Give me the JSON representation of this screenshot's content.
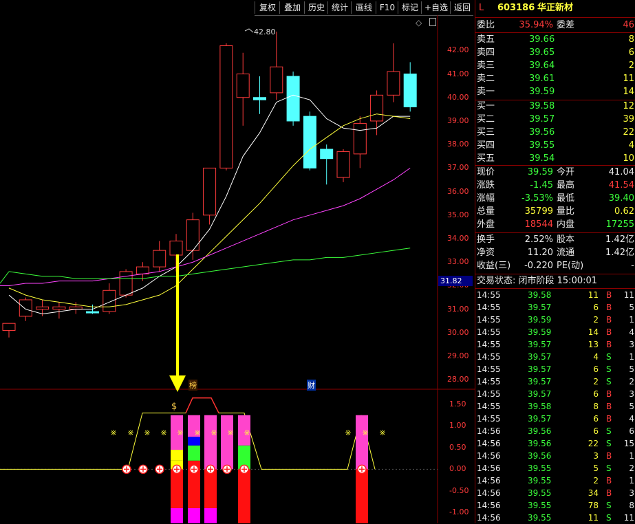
{
  "toolbar": {
    "buttons": [
      "复权",
      "叠加",
      "历史",
      "统计",
      "画线",
      "F10",
      "标记",
      "+自选",
      "返回"
    ]
  },
  "header": {
    "flag": "L",
    "code": "603186",
    "name": "华正新材"
  },
  "colors": {
    "up": "#ff3b3b",
    "down": "#54ffff",
    "ma5": "#ffffff",
    "ma10": "#ffff3c",
    "ma20": "#ff44ff",
    "ma60": "#3cff3c",
    "grid": "#8b0000",
    "flat": "#e8e8e8"
  },
  "price_axis": [
    "42.00",
    "41.00",
    "40.00",
    "39.00",
    "38.00",
    "37.00",
    "36.00",
    "35.00",
    "34.00",
    "33.00",
    "32.00",
    "31.00",
    "30.00",
    "29.00",
    "28.00"
  ],
  "current_price_marker": "31.82",
  "high_annotation": "42.80",
  "event_markers": {
    "bang": "榜",
    "cai": "财"
  },
  "indicator_axis": [
    "1.50",
    "1.00",
    "0.50",
    "0.00",
    "-0.50",
    "-1.00"
  ],
  "order_book": {
    "weibi_label": "委比",
    "weibi": "35.94%",
    "weicha_label": "委差",
    "weicha": "46",
    "asks": [
      {
        "label": "卖五",
        "price": "39.66",
        "vol": "8"
      },
      {
        "label": "卖四",
        "price": "39.65",
        "vol": "6"
      },
      {
        "label": "卖三",
        "price": "39.64",
        "vol": "2"
      },
      {
        "label": "卖二",
        "price": "39.61",
        "vol": "11"
      },
      {
        "label": "卖一",
        "price": "39.59",
        "vol": "14"
      }
    ],
    "bids": [
      {
        "label": "买一",
        "price": "39.58",
        "vol": "12"
      },
      {
        "label": "买二",
        "price": "39.57",
        "vol": "39"
      },
      {
        "label": "买三",
        "price": "39.56",
        "vol": "22"
      },
      {
        "label": "买四",
        "price": "39.55",
        "vol": "4"
      },
      {
        "label": "买五",
        "price": "39.54",
        "vol": "10"
      }
    ]
  },
  "quote": {
    "rows": [
      {
        "l1": "现价",
        "v1": "39.59",
        "c1": "g",
        "l2": "今开",
        "v2": "41.04",
        "c2": "w"
      },
      {
        "l1": "涨跌",
        "v1": "-1.45",
        "c1": "g",
        "l2": "最高",
        "v2": "41.54",
        "c2": "r"
      },
      {
        "l1": "涨幅",
        "v1": "-3.53%",
        "c1": "g",
        "l2": "最低",
        "v2": "39.40",
        "c2": "g"
      },
      {
        "l1": "总量",
        "v1": "35799",
        "c1": "y",
        "l2": "量比",
        "v2": "0.62",
        "c2": "y"
      },
      {
        "l1": "外盘",
        "v1": "18544",
        "c1": "r",
        "l2": "内盘",
        "v2": "17255",
        "c2": "g"
      }
    ],
    "rows2": [
      {
        "l1": "换手",
        "v1": "2.52%",
        "c1": "w",
        "l2": "股本",
        "v2": "1.42亿",
        "c2": "w"
      },
      {
        "l1": "净资",
        "v1": "11.20",
        "c1": "w",
        "l2": "流通",
        "v2": "1.42亿",
        "c2": "w"
      },
      {
        "l1": "收益(三)",
        "v1": "-0.220",
        "c1": "w",
        "l2": "PE(动)",
        "v2": "-",
        "c2": "w"
      }
    ]
  },
  "trade_status": "交易状态: 闭市阶段 15:00:01",
  "ticks": [
    [
      "14:55",
      "39.58",
      "11",
      "B",
      "11"
    ],
    [
      "14:55",
      "39.57",
      "6",
      "B",
      "5"
    ],
    [
      "14:55",
      "39.59",
      "2",
      "B",
      "1"
    ],
    [
      "14:55",
      "39.59",
      "14",
      "B",
      "4"
    ],
    [
      "14:55",
      "39.57",
      "13",
      "B",
      "3"
    ],
    [
      "14:55",
      "39.57",
      "4",
      "S",
      "1"
    ],
    [
      "14:55",
      "39.57",
      "6",
      "S",
      "5"
    ],
    [
      "14:55",
      "39.57",
      "2",
      "S",
      "2"
    ],
    [
      "14:55",
      "39.57",
      "6",
      "B",
      "3"
    ],
    [
      "14:55",
      "39.58",
      "8",
      "B",
      "5"
    ],
    [
      "14:55",
      "39.57",
      "6",
      "B",
      "4"
    ],
    [
      "14:56",
      "39.56",
      "6",
      "S",
      "6"
    ],
    [
      "14:56",
      "39.56",
      "22",
      "S",
      "15"
    ],
    [
      "14:56",
      "39.56",
      "3",
      "B",
      "1"
    ],
    [
      "14:56",
      "39.55",
      "5",
      "S",
      "2"
    ],
    [
      "14:56",
      "39.55",
      "2",
      "B",
      "1"
    ],
    [
      "14:56",
      "39.55",
      "34",
      "B",
      "3"
    ],
    [
      "14:56",
      "39.55",
      "78",
      "S",
      "8"
    ],
    [
      "14:56",
      "39.55",
      "11",
      "S",
      "11"
    ]
  ],
  "chart_data": {
    "type": "candlestick",
    "candles": [
      {
        "o": 30.1,
        "h": 30.4,
        "l": 29.8,
        "c": 30.4
      },
      {
        "o": 30.7,
        "h": 31.5,
        "l": 30.5,
        "c": 31.4
      },
      {
        "o": 31.0,
        "h": 31.4,
        "l": 30.7,
        "c": 31.1
      },
      {
        "o": 31.0,
        "h": 31.3,
        "l": 30.6,
        "c": 31.1
      },
      {
        "o": 31.0,
        "h": 31.3,
        "l": 30.8,
        "c": 31.1
      },
      {
        "o": 30.9,
        "h": 31.2,
        "l": 30.8,
        "c": 30.85
      },
      {
        "o": 30.9,
        "h": 32.1,
        "l": 30.8,
        "c": 31.8
      },
      {
        "o": 31.6,
        "h": 32.7,
        "l": 31.5,
        "c": 32.6
      },
      {
        "o": 32.5,
        "h": 33.0,
        "l": 32.2,
        "c": 32.8
      },
      {
        "o": 32.8,
        "h": 33.9,
        "l": 32.6,
        "c": 33.5
      },
      {
        "o": 33.3,
        "h": 34.2,
        "l": 32.6,
        "c": 33.9
      },
      {
        "o": 33.5,
        "h": 35.1,
        "l": 33.1,
        "c": 34.8
      },
      {
        "o": 35.0,
        "h": 37.0,
        "l": 34.6,
        "c": 37.0
      },
      {
        "o": 37.0,
        "h": 42.3,
        "l": 36.9,
        "c": 42.2
      },
      {
        "o": 40.0,
        "h": 41.9,
        "l": 38.8,
        "c": 41.0
      },
      {
        "o": 40.0,
        "h": 40.9,
        "l": 39.3,
        "c": 39.9
      },
      {
        "o": 40.2,
        "h": 42.8,
        "l": 39.9,
        "c": 41.3
      },
      {
        "o": 40.9,
        "h": 41.1,
        "l": 38.8,
        "c": 39.0
      },
      {
        "o": 39.2,
        "h": 39.4,
        "l": 36.9,
        "c": 37.0
      },
      {
        "o": 37.8,
        "h": 38.0,
        "l": 36.3,
        "c": 37.4
      },
      {
        "o": 36.6,
        "h": 37.8,
        "l": 36.4,
        "c": 37.7
      },
      {
        "o": 37.6,
        "h": 39.2,
        "l": 37.0,
        "c": 38.9
      },
      {
        "o": 39.0,
        "h": 40.3,
        "l": 38.4,
        "c": 40.1
      },
      {
        "o": 40.1,
        "h": 42.3,
        "l": 39.8,
        "c": 41.1
      },
      {
        "o": 41.0,
        "h": 41.5,
        "l": 39.4,
        "c": 39.6
      }
    ],
    "ma5": [
      31.6,
      31.0,
      30.8,
      30.9,
      31.0,
      31.0,
      31.3,
      31.6,
      31.9,
      32.4,
      32.8,
      33.5,
      34.4,
      35.8,
      37.5,
      38.5,
      39.8,
      40.1,
      39.9,
      39.1,
      38.7,
      38.6,
      38.7,
      39.2,
      39.2
    ],
    "ma10": [
      31.9,
      31.6,
      31.4,
      31.3,
      31.2,
      31.1,
      31.1,
      31.2,
      31.4,
      31.6,
      32.0,
      32.7,
      33.4,
      34.1,
      34.8,
      35.5,
      36.3,
      37.1,
      37.8,
      38.3,
      38.8,
      39.1,
      39.3,
      39.2,
      39.1
    ],
    "ma20": [
      32.0,
      32.1,
      32.1,
      32.2,
      32.2,
      32.2,
      32.3,
      32.4,
      32.5,
      32.6,
      32.8,
      33.0,
      33.3,
      33.6,
      33.9,
      34.2,
      34.5,
      34.8,
      35.0,
      35.2,
      35.4,
      35.7,
      36.1,
      36.5,
      37.0
    ],
    "ma60": [
      32.6,
      32.5,
      32.4,
      32.4,
      32.3,
      32.3,
      32.3,
      32.3,
      32.3,
      32.4,
      32.4,
      32.5,
      32.6,
      32.7,
      32.8,
      32.9,
      33.0,
      33.1,
      33.1,
      33.2,
      33.2,
      33.3,
      33.4,
      33.5,
      33.6
    ],
    "ylim": [
      27.6,
      43.5
    ]
  }
}
